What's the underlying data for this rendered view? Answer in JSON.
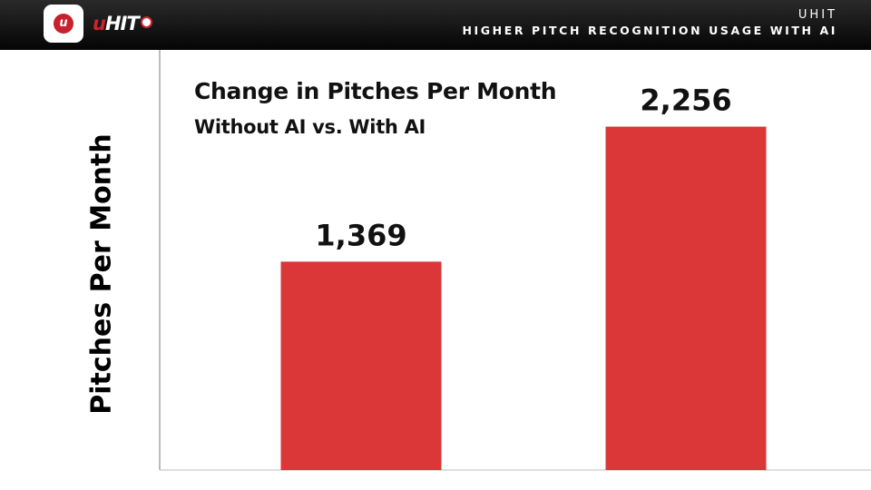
{
  "header": {
    "app_icon": "u-baseball-app-icon",
    "logo_text_u": "u",
    "logo_text_hit": "HIT",
    "brand": "UHIT",
    "deck_title": "HIGHER PITCH RECOGNITION USAGE WITH AI"
  },
  "colors": {
    "header_bg": "#111111",
    "bar": "#db3638",
    "brand_red": "#d0222e"
  },
  "chart_data": {
    "type": "bar",
    "title": "Change in Pitches Per Month",
    "subtitle": "Without AI vs. With AI",
    "xlabel": "",
    "ylabel": "Pitches Per Month",
    "categories": [
      "",
      ""
    ],
    "values": [
      1369,
      2256
    ],
    "value_labels": [
      "1,369",
      "2,256"
    ],
    "ylim": [
      0,
      2760
    ],
    "grid": false,
    "legend": "none"
  }
}
